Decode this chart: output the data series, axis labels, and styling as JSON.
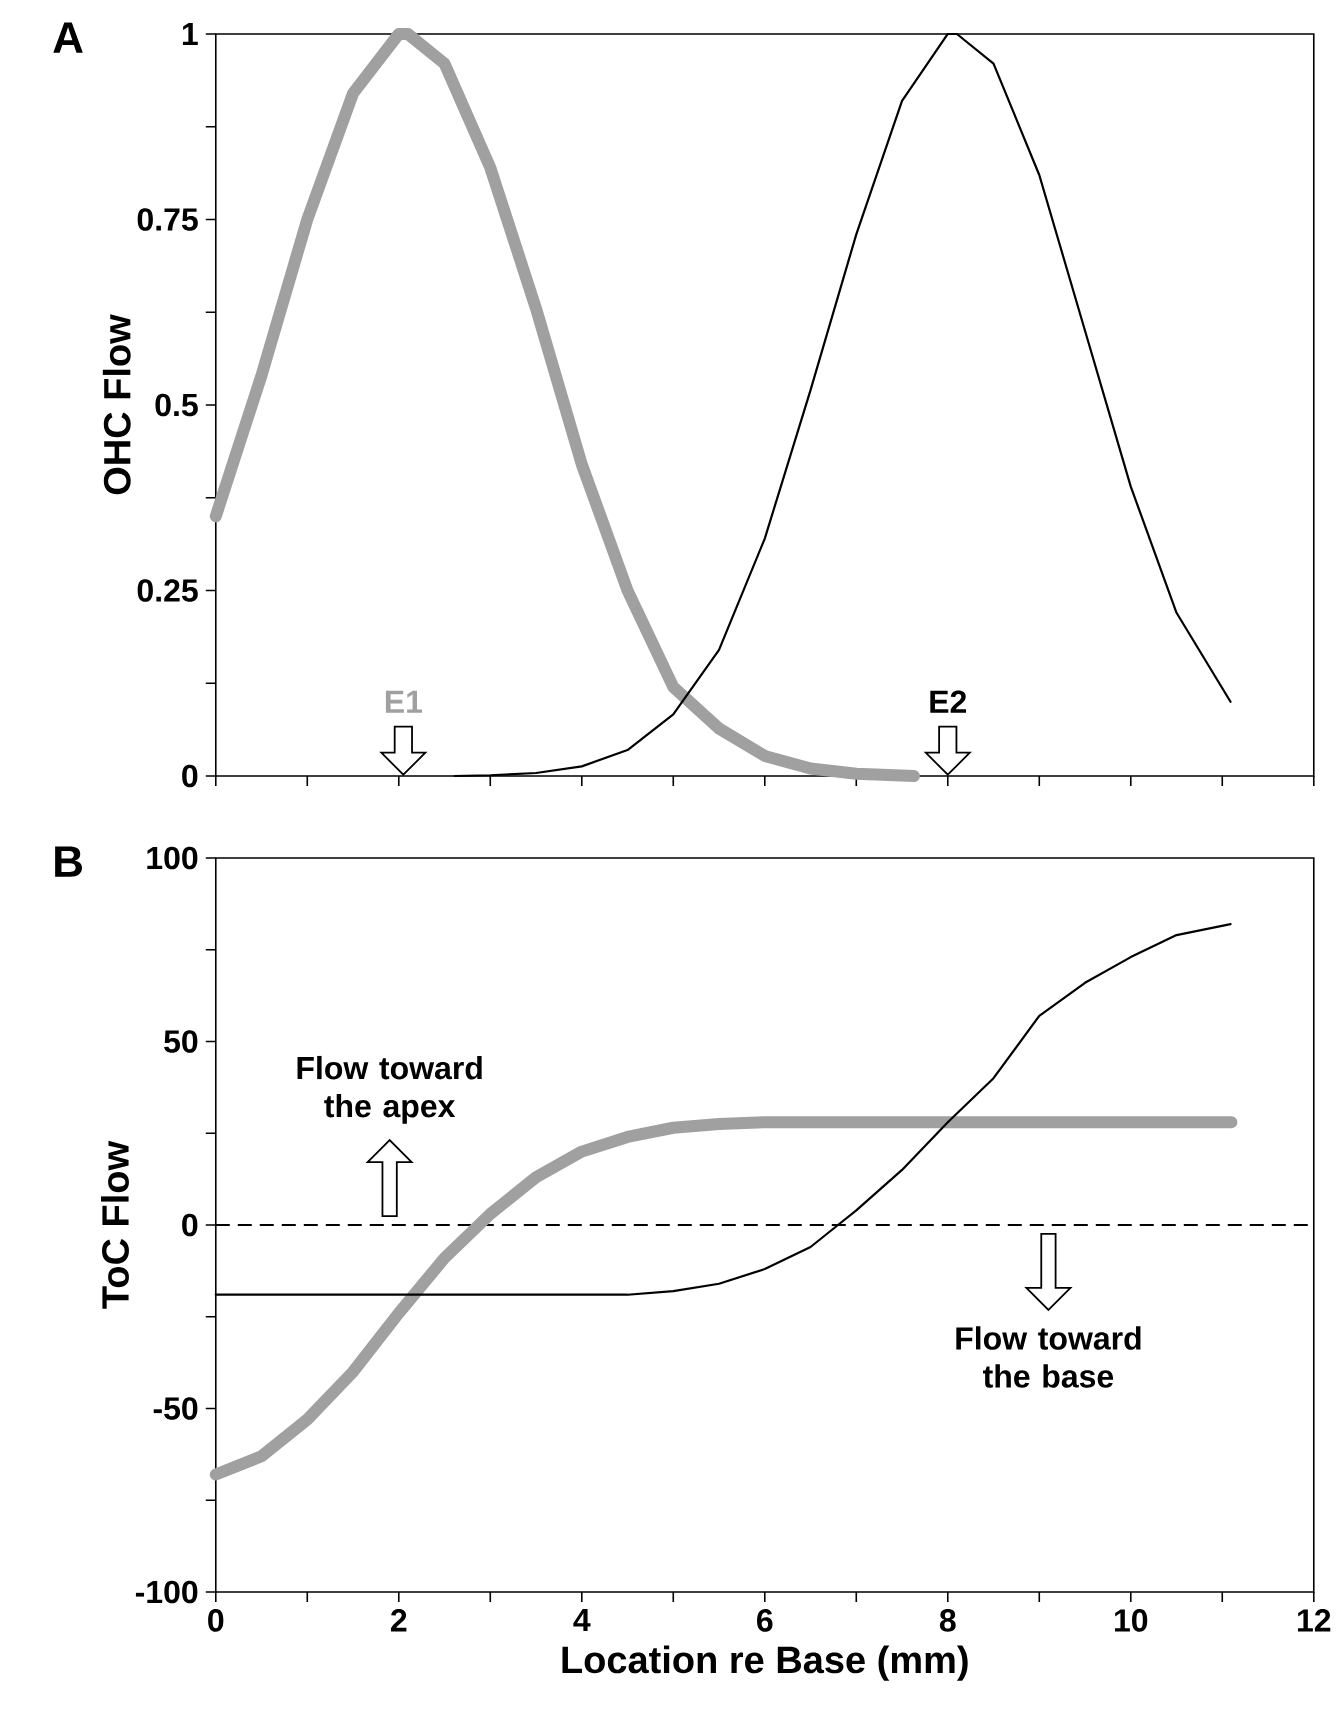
{
  "chart_data": [
    {
      "type": "line",
      "title": "A",
      "ylabel": "OHC Flow",
      "xlim": [
        0,
        12
      ],
      "ylim": [
        0,
        1
      ],
      "xticks": [
        0,
        1,
        2,
        3,
        4,
        5,
        6,
        7,
        8,
        9,
        10,
        11,
        12
      ],
      "yticks": [
        0,
        {
          "value": 0.125,
          "label": null
        },
        0.25,
        {
          "value": 0.375,
          "label": null
        },
        0.5,
        {
          "value": 0.625,
          "label": null
        },
        0.75,
        {
          "value": 0.875,
          "label": null
        },
        1
      ],
      "tick_labels": "y",
      "series": [
        {
          "color": "#a0a0a0",
          "x": [
            0,
            0.5,
            1,
            1.5,
            2,
            2.1,
            2.5,
            3,
            3.5,
            4,
            4.5,
            5,
            5.5,
            6,
            6.5,
            7,
            7.63
          ],
          "values": [
            0.35,
            0.54,
            0.75,
            0.92,
            1.0,
            1.0,
            0.96,
            0.82,
            0.63,
            0.42,
            0.25,
            0.12,
            0.064,
            0.027,
            0.01,
            0.003,
            0
          ]
        },
        {
          "color": "#000000",
          "x": [
            2.61,
            3,
            3.5,
            4,
            4.5,
            5,
            5.5,
            6,
            6.5,
            7,
            7.5,
            8,
            8.1,
            8.5,
            9,
            9.5,
            10,
            10.5,
            11.09
          ],
          "values": [
            0,
            0.001,
            0.004,
            0.013,
            0.035,
            0.083,
            0.17,
            0.32,
            0.52,
            0.73,
            0.91,
            1.0,
            1.0,
            0.96,
            0.81,
            0.6,
            0.39,
            0.22,
            0.1
          ]
        }
      ],
      "annotations": [
        "E1",
        "E2"
      ]
    },
    {
      "type": "line",
      "title": "B",
      "xlabel": "Location re Base (mm)",
      "ylabel": "ToC Flow",
      "xlim": [
        0,
        12
      ],
      "ylim": [
        -100,
        100
      ],
      "xticks": [
        0,
        {
          "value": 1,
          "label": null
        },
        2,
        {
          "value": 3,
          "label": null
        },
        4,
        {
          "value": 5,
          "label": null
        },
        6,
        {
          "value": 7,
          "label": null
        },
        8,
        {
          "value": 9,
          "label": null
        },
        10,
        {
          "value": 11,
          "label": null
        },
        12
      ],
      "yticks": [
        -100,
        {
          "value": -75,
          "label": null
        },
        -50,
        {
          "value": -25,
          "label": null
        },
        0,
        {
          "value": 25,
          "label": null
        },
        50,
        {
          "value": 75,
          "label": null
        },
        100
      ],
      "series": [
        {
          "color": "#a0a0a0",
          "x": [
            0,
            0.5,
            1,
            1.5,
            2,
            2.5,
            3,
            3.5,
            4,
            4.5,
            5,
            5.5,
            6,
            7,
            8,
            9,
            10,
            11.1
          ],
          "values": [
            -68,
            -63,
            -53,
            -40,
            -24,
            -9,
            3,
            13,
            20,
            24,
            26.5,
            27.5,
            28,
            28,
            28,
            28,
            28,
            28
          ]
        },
        {
          "color": "#000000",
          "x": [
            0,
            1,
            2,
            3,
            4,
            4.5,
            5,
            5.5,
            6,
            6.5,
            6.8,
            7,
            7.5,
            8,
            8.5,
            9,
            9.5,
            10,
            10.5,
            11.09
          ],
          "values": [
            -19,
            -19,
            -19,
            -19,
            -19,
            -19,
            -18,
            -16,
            -12,
            -6,
            0,
            4,
            15,
            28,
            40,
            57,
            66,
            73,
            79,
            82
          ]
        }
      ],
      "ref_lines": [
        {
          "axis": "y",
          "value": 0,
          "line_style": "dashed",
          "color": "#000000"
        }
      ],
      "annotations": [
        "Flow toward the apex",
        "Flow toward the base"
      ]
    }
  ]
}
